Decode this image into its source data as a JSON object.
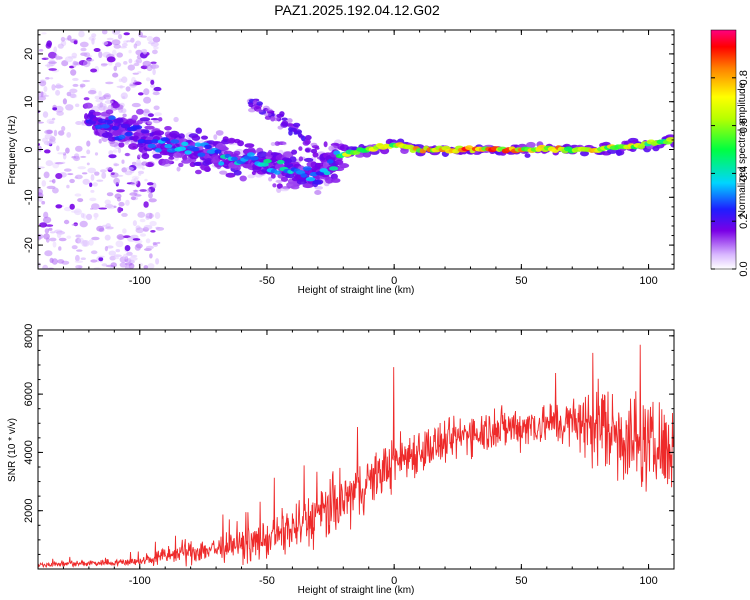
{
  "title": "PAZ1.2025.192.04.12.G02",
  "colors": {
    "snr_line": "#ee2a2a",
    "axis": "#000000"
  },
  "chart_data": [
    {
      "type": "heatmap",
      "xlabel": "Height of straight line (km)",
      "ylabel": "Frequency (Hz)",
      "xlim": [
        -140,
        110
      ],
      "ylim": [
        -25,
        25
      ],
      "xticks": [
        -100,
        -50,
        0,
        50,
        100
      ],
      "yticks": [
        -20,
        -10,
        0,
        10,
        20
      ],
      "grid": false,
      "colorbar": {
        "label": "Normalized spectral amplitude",
        "range": [
          0.0,
          1.0
        ],
        "ticks": [
          0.0,
          0.2,
          0.4,
          0.6,
          0.8
        ],
        "colormap": "rainbow (white-purple-blue-cyan-green-yellow-red-magenta)"
      },
      "ridge": {
        "height_km": [
          -120,
          -110,
          -100,
          -90,
          -80,
          -70,
          -60,
          -50,
          -40,
          -30,
          -25,
          -20,
          -10,
          0,
          10,
          20,
          30,
          40,
          50,
          60,
          70,
          80,
          90,
          100,
          110
        ],
        "frequency_hz": [
          6,
          5,
          3,
          1,
          0,
          -1,
          -2,
          -3,
          -4,
          -5,
          -3,
          -1,
          0,
          1,
          0,
          0,
          0,
          0,
          0,
          0,
          0,
          0,
          0.5,
          1,
          2
        ],
        "amplitude": [
          0.25,
          0.3,
          0.3,
          0.35,
          0.4,
          0.4,
          0.45,
          0.45,
          0.4,
          0.35,
          0.4,
          0.7,
          0.8,
          0.75,
          0.85,
          0.95,
          0.95,
          0.9,
          0.85,
          0.85,
          0.8,
          0.8,
          0.75,
          0.7,
          0.65
        ]
      },
      "secondary_branch": {
        "height_km": [
          -57,
          -50,
          -45,
          -40,
          -35,
          -30
        ],
        "frequency_hz": [
          10,
          8,
          6,
          5,
          2,
          0
        ]
      },
      "noise_region_km": [
        -140,
        -100
      ]
    },
    {
      "type": "line",
      "xlabel": "Height of straight line (km)",
      "ylabel": "SNR (10 * v/v)",
      "xlim": [
        -140,
        110
      ],
      "ylim": [
        0,
        8200
      ],
      "xticks": [
        -100,
        -50,
        0,
        50,
        100
      ],
      "yticks": [
        2000,
        4000,
        6000,
        8000
      ],
      "grid": false,
      "series": [
        {
          "x": [
            -140,
            -120,
            -100,
            -90,
            -80,
            -70,
            -60,
            -50,
            -40,
            -30,
            -20,
            -10,
            0,
            10,
            20,
            30,
            40,
            50,
            60,
            70,
            80,
            90,
            100,
            110
          ],
          "y": [
            150,
            200,
            250,
            450,
            600,
            700,
            800,
            1000,
            1400,
            1800,
            2300,
            3000,
            3700,
            4100,
            4300,
            4700,
            4800,
            4900,
            5000,
            5000,
            5000,
            4600,
            4200,
            4000
          ],
          "spread": [
            100,
            120,
            150,
            350,
            450,
            500,
            550,
            700,
            900,
            1100,
            1200,
            900,
            1000,
            900,
            800,
            800,
            800,
            800,
            800,
            900,
            1700,
            1800,
            1600,
            1500
          ]
        }
      ]
    }
  ]
}
